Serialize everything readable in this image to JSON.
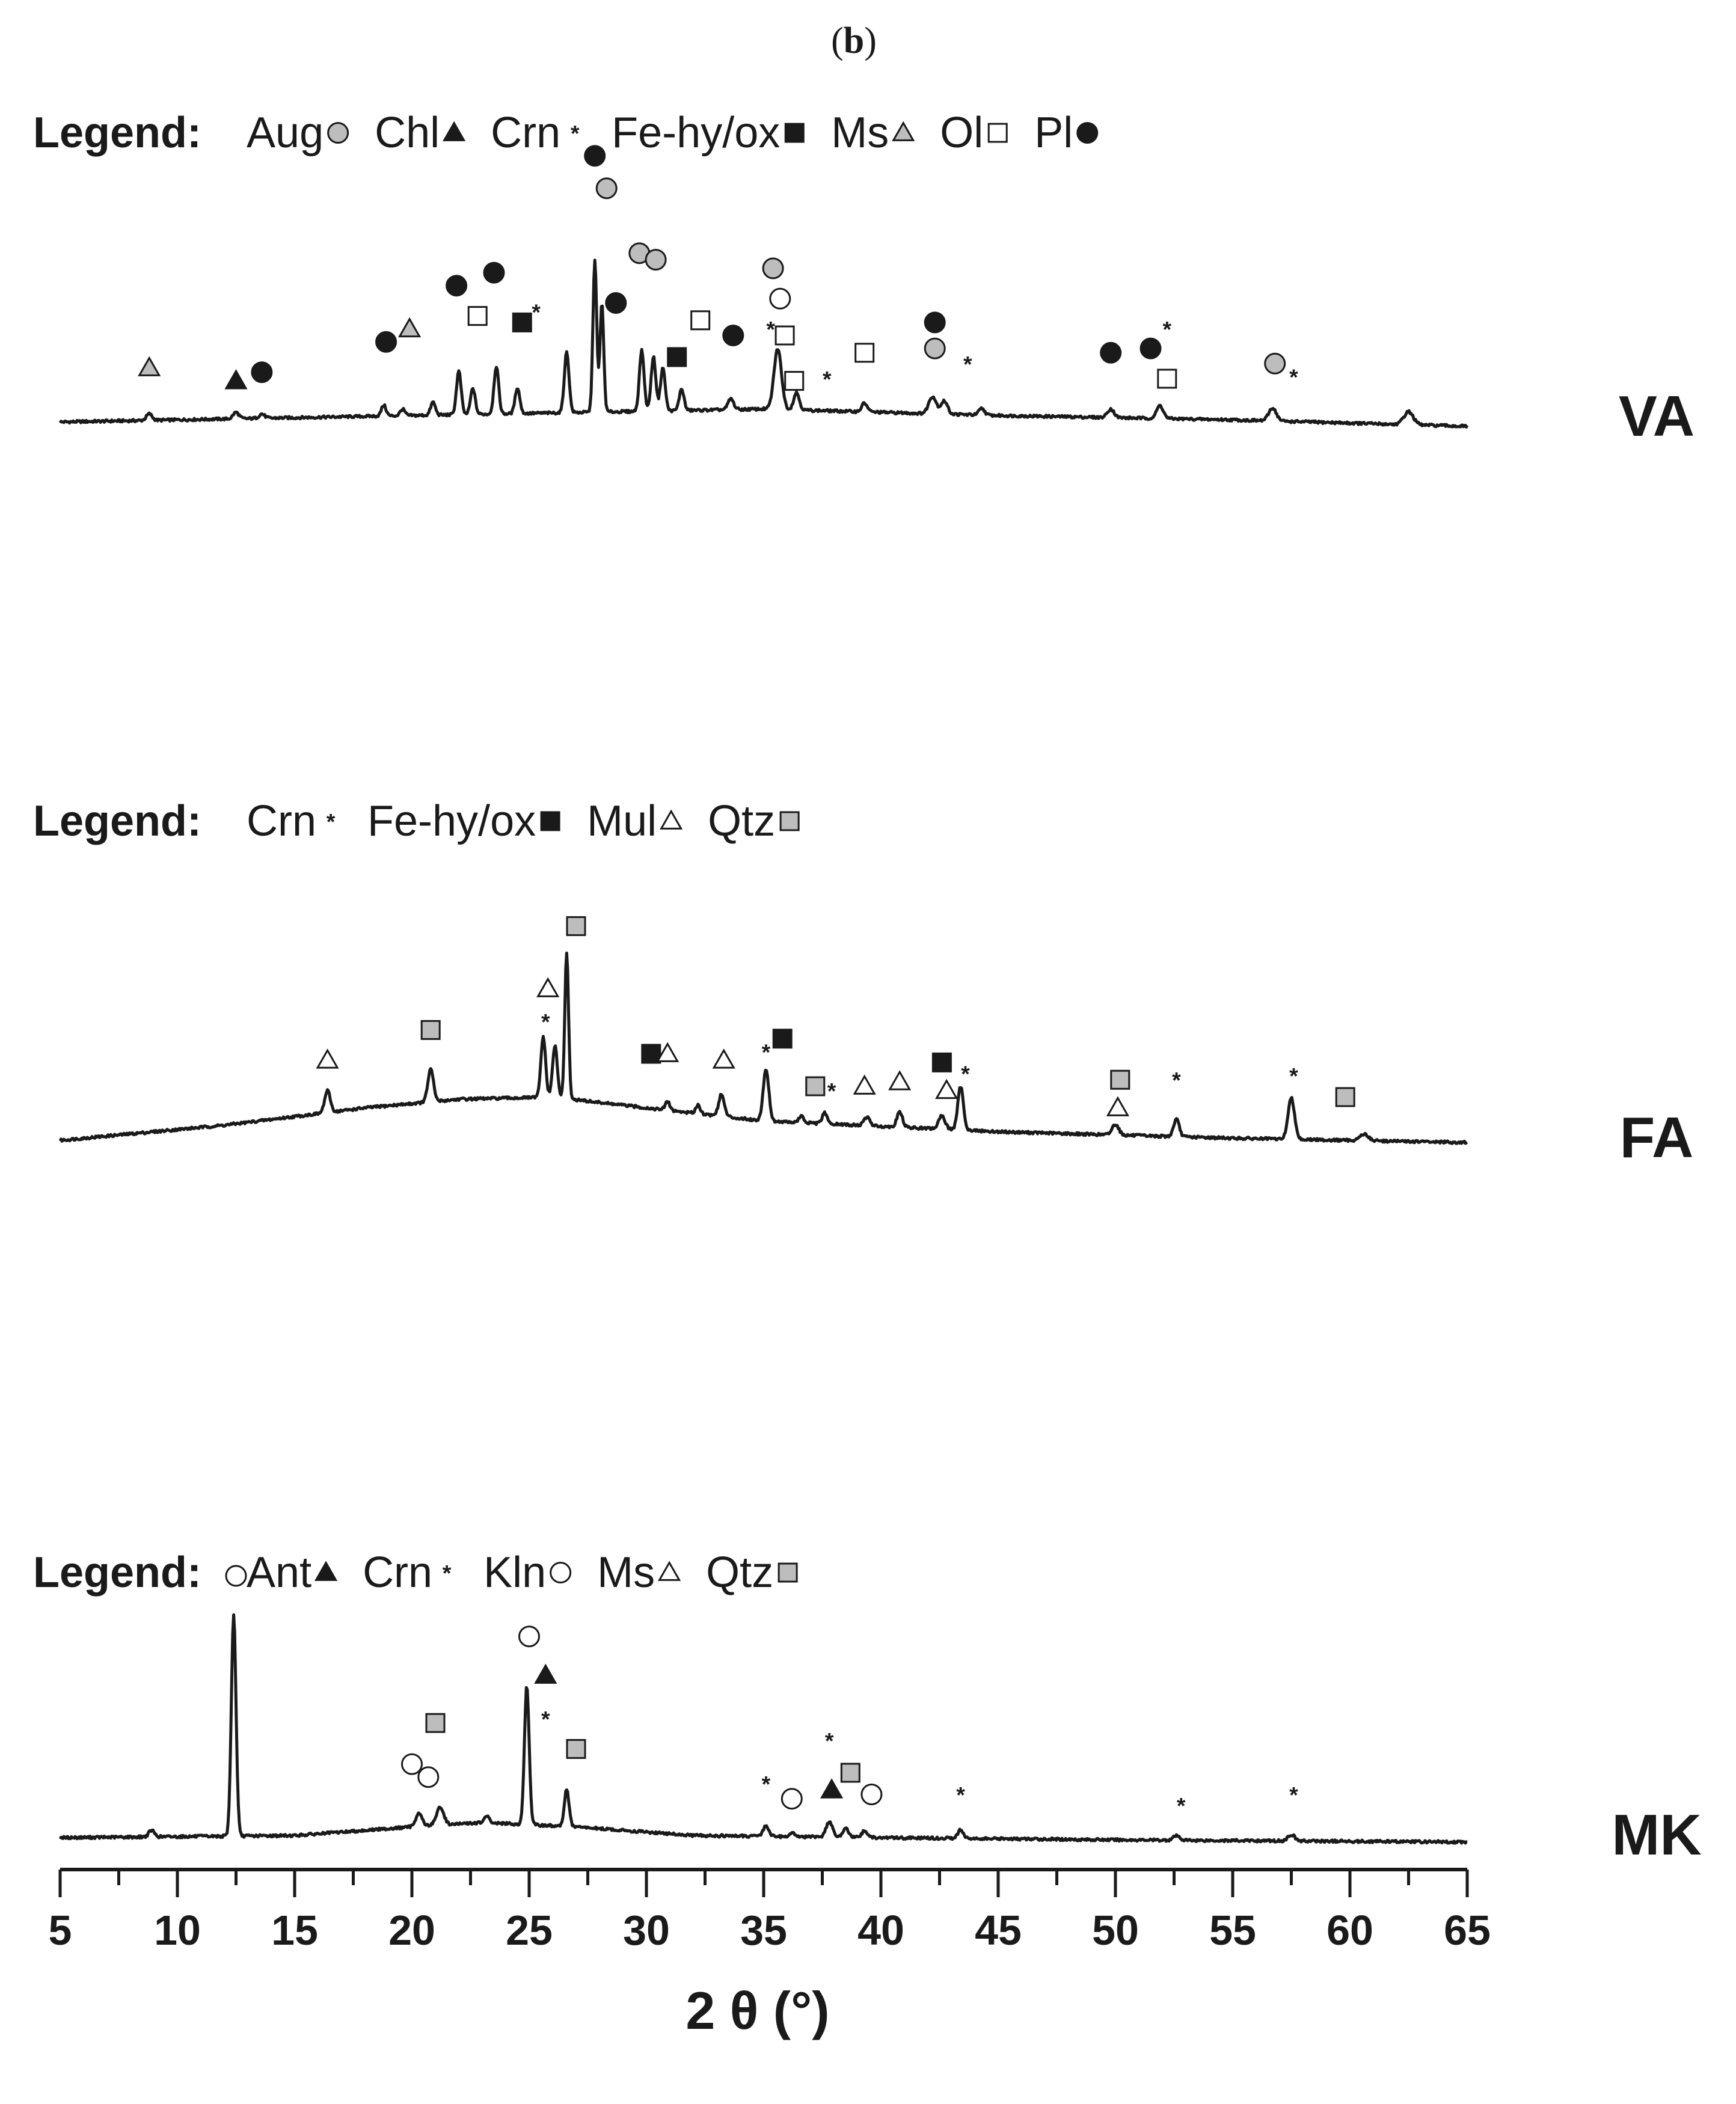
{
  "panel_label": {
    "open": "(",
    "letter": "b",
    "close": ")"
  },
  "colors": {
    "ink": "#1a1a1a",
    "grey_fill": "#bdbdbd",
    "white_fill": "#ffffff",
    "background": "#ffffff"
  },
  "chart_data": {
    "type": "line",
    "subtype": "stacked XRD diffractograms with phase markers",
    "xlabel": "2 θ (°)",
    "xlim": [
      5,
      65
    ],
    "x_major_ticks": [
      5,
      10,
      15,
      20,
      25,
      30,
      35,
      40,
      45,
      50,
      55,
      60,
      65
    ],
    "x_minor_step": 2.5,
    "y_axis_shown": false,
    "grid": false,
    "symbol_keys": {
      "circle_grey": "grey circle",
      "circle_white": "open circle",
      "circle_black": "filled circle",
      "triangle_black": "filled triangle",
      "triangle_grey": "grey triangle",
      "triangle_white": "open triangle",
      "square_black": "filled square",
      "square_white": "open square",
      "square_grey": "grey square",
      "star": "asterisk"
    },
    "series": [
      {
        "name": "VA",
        "legend": {
          "lead": "Legend:",
          "entries": [
            {
              "abbr": "Aug",
              "symbol": "circle_grey"
            },
            {
              "abbr": "Chl",
              "symbol": "triangle_black"
            },
            {
              "abbr": "Crn",
              "symbol": "star"
            },
            {
              "abbr": "Fe-hy/ox",
              "symbol": "square_black"
            },
            {
              "abbr": "Ms",
              "symbol": "triangle_grey"
            },
            {
              "abbr": "Ol",
              "symbol": "square_white"
            },
            {
              "abbr": "Pl",
              "symbol": "circle_black"
            }
          ]
        },
        "baseline": [
          [
            5,
            0.05
          ],
          [
            15,
            0.07
          ],
          [
            25,
            0.09
          ],
          [
            35,
            0.11
          ],
          [
            45,
            0.08
          ],
          [
            55,
            0.06
          ],
          [
            65,
            0.03
          ]
        ],
        "peaks": [
          [
            8.8,
            0.03,
            0.12
          ],
          [
            12.5,
            0.03,
            0.12
          ],
          [
            13.6,
            0.02,
            0.12
          ],
          [
            18.8,
            0.05,
            0.1
          ],
          [
            19.6,
            0.03,
            0.1
          ],
          [
            20.9,
            0.06,
            0.1
          ],
          [
            22.0,
            0.2,
            0.1
          ],
          [
            22.6,
            0.12,
            0.1
          ],
          [
            23.6,
            0.22,
            0.1
          ],
          [
            24.5,
            0.12,
            0.1
          ],
          [
            26.6,
            0.28,
            0.1
          ],
          [
            27.8,
            0.7,
            0.08
          ],
          [
            28.1,
            0.5,
            0.08
          ],
          [
            29.8,
            0.28,
            0.1
          ],
          [
            30.3,
            0.25,
            0.1
          ],
          [
            30.7,
            0.2,
            0.1
          ],
          [
            31.5,
            0.1,
            0.1
          ],
          [
            33.6,
            0.05,
            0.12
          ],
          [
            35.6,
            0.28,
            0.16
          ],
          [
            36.4,
            0.08,
            0.12
          ],
          [
            39.3,
            0.04,
            0.12
          ],
          [
            42.2,
            0.08,
            0.16
          ],
          [
            42.7,
            0.06,
            0.14
          ],
          [
            44.3,
            0.03,
            0.12
          ],
          [
            49.8,
            0.04,
            0.14
          ],
          [
            51.9,
            0.06,
            0.14
          ],
          [
            56.7,
            0.06,
            0.16
          ],
          [
            62.5,
            0.06,
            0.2
          ]
        ],
        "markers": [
          {
            "symbol": "triangle_grey",
            "x": 8.8,
            "y": 0.3
          },
          {
            "symbol": "triangle_black",
            "x": 12.5,
            "y": 0.24
          },
          {
            "symbol": "circle_black",
            "x": 13.6,
            "y": 0.28
          },
          {
            "symbol": "circle_black",
            "x": 18.9,
            "y": 0.42
          },
          {
            "symbol": "triangle_grey",
            "x": 19.9,
            "y": 0.48
          },
          {
            "symbol": "circle_black",
            "x": 21.9,
            "y": 0.68
          },
          {
            "symbol": "square_white",
            "x": 22.8,
            "y": 0.54
          },
          {
            "symbol": "circle_black",
            "x": 23.5,
            "y": 0.74
          },
          {
            "symbol": "square_black",
            "x": 24.7,
            "y": 0.51
          },
          {
            "symbol": "star",
            "x": 25.3,
            "y": 0.56
          },
          {
            "symbol": "circle_black",
            "x": 27.8,
            "y": 1.28
          },
          {
            "symbol": "circle_grey",
            "x": 28.3,
            "y": 1.13
          },
          {
            "symbol": "circle_black",
            "x": 28.7,
            "y": 0.6
          },
          {
            "symbol": "circle_grey",
            "x": 29.7,
            "y": 0.83
          },
          {
            "symbol": "circle_grey",
            "x": 30.4,
            "y": 0.8
          },
          {
            "symbol": "square_black",
            "x": 31.3,
            "y": 0.35
          },
          {
            "symbol": "square_white",
            "x": 32.3,
            "y": 0.52
          },
          {
            "symbol": "circle_black",
            "x": 33.7,
            "y": 0.45
          },
          {
            "symbol": "circle_grey",
            "x": 35.4,
            "y": 0.76
          },
          {
            "symbol": "circle_white",
            "x": 35.7,
            "y": 0.62
          },
          {
            "symbol": "star",
            "x": 35.3,
            "y": 0.48
          },
          {
            "symbol": "square_white",
            "x": 35.9,
            "y": 0.45
          },
          {
            "symbol": "square_white",
            "x": 36.3,
            "y": 0.24
          },
          {
            "symbol": "star",
            "x": 37.7,
            "y": 0.25
          },
          {
            "symbol": "square_white",
            "x": 39.3,
            "y": 0.37
          },
          {
            "symbol": "circle_black",
            "x": 42.3,
            "y": 0.51
          },
          {
            "symbol": "circle_grey",
            "x": 42.3,
            "y": 0.39
          },
          {
            "symbol": "star",
            "x": 43.7,
            "y": 0.32
          },
          {
            "symbol": "circle_black",
            "x": 49.8,
            "y": 0.37
          },
          {
            "symbol": "circle_black",
            "x": 51.5,
            "y": 0.39
          },
          {
            "symbol": "star",
            "x": 52.2,
            "y": 0.48
          },
          {
            "symbol": "square_white",
            "x": 52.2,
            "y": 0.25
          },
          {
            "symbol": "circle_grey",
            "x": 56.8,
            "y": 0.32
          },
          {
            "symbol": "star",
            "x": 57.6,
            "y": 0.26
          }
        ]
      },
      {
        "name": "FA",
        "legend": {
          "lead": "Legend:",
          "entries": [
            {
              "abbr": "Crn",
              "symbol": "star"
            },
            {
              "abbr": "Fe-hy/ox",
              "symbol": "square_black"
            },
            {
              "abbr": "Mul",
              "symbol": "triangle_white"
            },
            {
              "abbr": "Qtz",
              "symbol": "square_grey"
            }
          ]
        },
        "baseline": [
          [
            5,
            0.05
          ],
          [
            12,
            0.12
          ],
          [
            18,
            0.2
          ],
          [
            22,
            0.24
          ],
          [
            26,
            0.25
          ],
          [
            30,
            0.2
          ],
          [
            35,
            0.14
          ],
          [
            45,
            0.09
          ],
          [
            55,
            0.06
          ],
          [
            65,
            0.04
          ]
        ],
        "peaks": [
          [
            16.4,
            0.1,
            0.12
          ],
          [
            20.8,
            0.15,
            0.12
          ],
          [
            25.6,
            0.28,
            0.1
          ],
          [
            26.1,
            0.24,
            0.1
          ],
          [
            26.6,
            0.67,
            0.08
          ],
          [
            30.9,
            0.04,
            0.1
          ],
          [
            32.2,
            0.04,
            0.1
          ],
          [
            33.2,
            0.1,
            0.12
          ],
          [
            35.1,
            0.24,
            0.12
          ],
          [
            36.6,
            0.03,
            0.1
          ],
          [
            37.6,
            0.05,
            0.1
          ],
          [
            39.4,
            0.04,
            0.12
          ],
          [
            40.8,
            0.07,
            0.12
          ],
          [
            42.6,
            0.06,
            0.14
          ],
          [
            43.4,
            0.2,
            0.12
          ],
          [
            50.0,
            0.05,
            0.14
          ],
          [
            52.6,
            0.08,
            0.12
          ],
          [
            57.5,
            0.19,
            0.14
          ],
          [
            60.6,
            0.03,
            0.18
          ]
        ],
        "markers": [
          {
            "symbol": "triangle_white",
            "x": 16.4,
            "y": 0.42
          },
          {
            "symbol": "square_grey",
            "x": 20.8,
            "y": 0.56
          },
          {
            "symbol": "star",
            "x": 25.7,
            "y": 0.6
          },
          {
            "symbol": "triangle_white",
            "x": 25.8,
            "y": 0.75
          },
          {
            "symbol": "square_grey",
            "x": 27.0,
            "y": 1.04
          },
          {
            "symbol": "square_black",
            "x": 30.2,
            "y": 0.45
          },
          {
            "symbol": "triangle_white",
            "x": 30.9,
            "y": 0.45
          },
          {
            "symbol": "triangle_white",
            "x": 33.3,
            "y": 0.42
          },
          {
            "symbol": "star",
            "x": 35.1,
            "y": 0.46
          },
          {
            "symbol": "square_black",
            "x": 35.8,
            "y": 0.52
          },
          {
            "symbol": "square_grey",
            "x": 37.2,
            "y": 0.3
          },
          {
            "symbol": "star",
            "x": 37.9,
            "y": 0.28
          },
          {
            "symbol": "triangle_white",
            "x": 39.3,
            "y": 0.3
          },
          {
            "symbol": "triangle_white",
            "x": 40.8,
            "y": 0.32
          },
          {
            "symbol": "square_black",
            "x": 42.6,
            "y": 0.41
          },
          {
            "symbol": "triangle_white",
            "x": 42.8,
            "y": 0.28
          },
          {
            "symbol": "star",
            "x": 43.6,
            "y": 0.36
          },
          {
            "symbol": "square_grey",
            "x": 50.2,
            "y": 0.33
          },
          {
            "symbol": "triangle_white",
            "x": 50.1,
            "y": 0.2
          },
          {
            "symbol": "star",
            "x": 52.6,
            "y": 0.33
          },
          {
            "symbol": "star",
            "x": 57.6,
            "y": 0.35
          },
          {
            "symbol": "square_grey",
            "x": 59.8,
            "y": 0.25
          }
        ]
      },
      {
        "name": "MK",
        "legend": {
          "lead": "Legend:",
          "entries": [
            {
              "abbr": "Ant",
              "symbol": "triangle_black"
            },
            {
              "abbr": "Crn",
              "symbol": "star"
            },
            {
              "abbr": "Kln",
              "symbol": "circle_white"
            },
            {
              "abbr": "Ms",
              "symbol": "triangle_white"
            },
            {
              "abbr": "Qtz",
              "symbol": "square_grey"
            }
          ]
        },
        "baseline": [
          [
            5,
            0.05
          ],
          [
            15,
            0.06
          ],
          [
            20,
            0.1
          ],
          [
            23,
            0.12
          ],
          [
            27,
            0.1
          ],
          [
            32,
            0.06
          ],
          [
            40,
            0.05
          ],
          [
            50,
            0.04
          ],
          [
            65,
            0.03
          ]
        ],
        "peaks": [
          [
            8.9,
            0.03,
            0.12
          ],
          [
            12.4,
            1.02,
            0.1
          ],
          [
            20.3,
            0.06,
            0.14
          ],
          [
            21.2,
            0.08,
            0.16
          ],
          [
            23.2,
            0.03,
            0.1
          ],
          [
            24.9,
            0.64,
            0.1
          ],
          [
            26.6,
            0.17,
            0.1
          ],
          [
            35.1,
            0.05,
            0.12
          ],
          [
            36.2,
            0.02,
            0.1
          ],
          [
            37.8,
            0.07,
            0.14
          ],
          [
            38.5,
            0.04,
            0.12
          ],
          [
            39.3,
            0.03,
            0.12
          ],
          [
            43.4,
            0.04,
            0.12
          ],
          [
            52.6,
            0.02,
            0.14
          ],
          [
            57.5,
            0.03,
            0.14
          ]
        ],
        "markers": [
          {
            "symbol": "circle_white",
            "x": 12.5,
            "y": 1.26
          },
          {
            "symbol": "square_grey",
            "x": 21.0,
            "y": 0.58
          },
          {
            "symbol": "circle_white",
            "x": 20.0,
            "y": 0.39
          },
          {
            "symbol": "circle_white",
            "x": 20.7,
            "y": 0.33
          },
          {
            "symbol": "circle_white",
            "x": 25.0,
            "y": 0.98
          },
          {
            "symbol": "triangle_black",
            "x": 25.7,
            "y": 0.8
          },
          {
            "symbol": "star",
            "x": 25.7,
            "y": 0.6
          },
          {
            "symbol": "square_grey",
            "x": 27.0,
            "y": 0.46
          },
          {
            "symbol": "star",
            "x": 35.1,
            "y": 0.3
          },
          {
            "symbol": "circle_white",
            "x": 36.2,
            "y": 0.23
          },
          {
            "symbol": "star",
            "x": 37.8,
            "y": 0.5
          },
          {
            "symbol": "triangle_black",
            "x": 37.9,
            "y": 0.27
          },
          {
            "symbol": "square_grey",
            "x": 38.7,
            "y": 0.35
          },
          {
            "symbol": "circle_white",
            "x": 39.6,
            "y": 0.25
          },
          {
            "symbol": "star",
            "x": 43.4,
            "y": 0.25
          },
          {
            "symbol": "star",
            "x": 52.8,
            "y": 0.2
          },
          {
            "symbol": "star",
            "x": 57.6,
            "y": 0.25
          }
        ]
      }
    ]
  }
}
